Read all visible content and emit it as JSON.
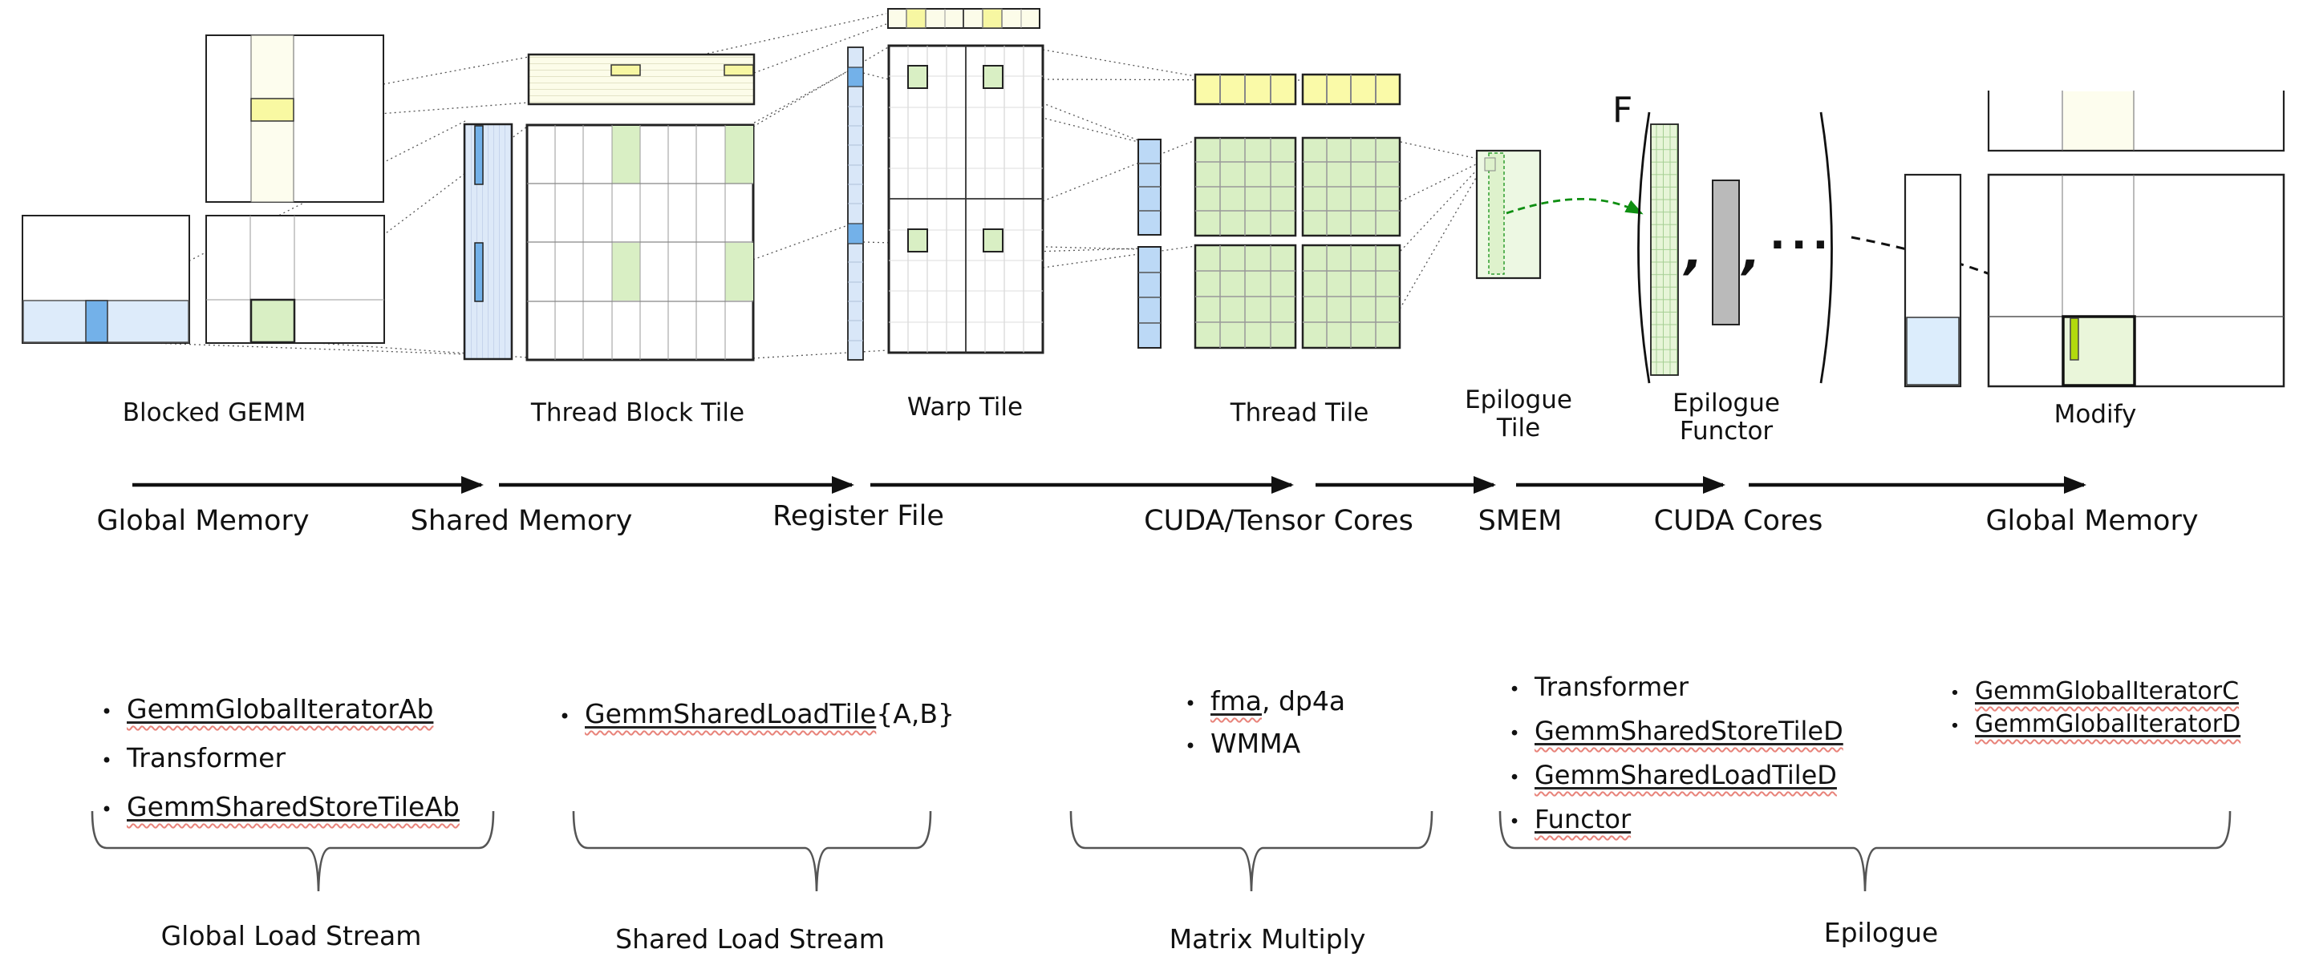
{
  "stages": {
    "blocked_gemm": "Blocked GEMM",
    "thread_block_tile": "Thread Block Tile",
    "warp_tile": "Warp Tile",
    "thread_tile": "Thread Tile",
    "epilogue_tile": "Epilogue Tile",
    "epilogue_functor": "Epilogue Functor",
    "modify": "Modify"
  },
  "memory_flow": {
    "labels": [
      "Global Memory",
      "Shared Memory",
      "Register File",
      "CUDA/Tensor Cores",
      "SMEM",
      "CUDA Cores",
      "Global Memory"
    ]
  },
  "functor": {
    "f": "F",
    "comma": ",",
    "ellipsis": "···"
  },
  "component_lists": [
    {
      "items": [
        [
          {
            "t": "GemmGlobalIteratorAb",
            "u": true
          }
        ],
        [
          {
            "t": "Transformer",
            "u": false
          }
        ],
        [
          {
            "t": "GemmSharedStoreTileAb",
            "u": true
          }
        ]
      ]
    },
    {
      "items": [
        [
          {
            "t": "GemmSharedLoadTile",
            "u": true
          },
          {
            "t": "{A,B}",
            "u": false
          }
        ]
      ]
    },
    {
      "items": [
        [
          {
            "t": "fma",
            "u": true
          },
          {
            "t": ", dp4a",
            "u": false
          }
        ],
        [
          {
            "t": "WMMA",
            "u": false
          }
        ]
      ]
    },
    {
      "items": [
        [
          {
            "t": "Transformer",
            "u": false
          }
        ],
        [
          {
            "t": "GemmSharedStoreTileD",
            "u": true
          }
        ],
        [
          {
            "t": "GemmSharedLoadTileD",
            "u": true
          }
        ],
        [
          {
            "t": "Functor",
            "u": true
          }
        ]
      ]
    },
    {
      "items": [
        [
          {
            "t": "GemmGlobalIteratorC",
            "u": true
          }
        ],
        [
          {
            "t": "GemmGlobalIteratorD",
            "u": true
          }
        ]
      ]
    }
  ],
  "streams": [
    "Global Load Stream",
    "Shared Load Stream",
    "Matrix Multiply",
    "Epilogue"
  ],
  "colors": {
    "light_blue": "#ddebfa",
    "blue_highlight": "#73b1e9",
    "ivory": "#fdfdee",
    "yellow_highlight": "#f9f9a2",
    "pale_green": "#d9efc4",
    "epilogue_green": "#edf8e3",
    "functor_green": "#e7f5d8",
    "gray_bar": "#bababa",
    "chartreuse": "#b2da0e",
    "arrow_green": "#0f8f12",
    "squiggle_red": "#e8837a"
  }
}
